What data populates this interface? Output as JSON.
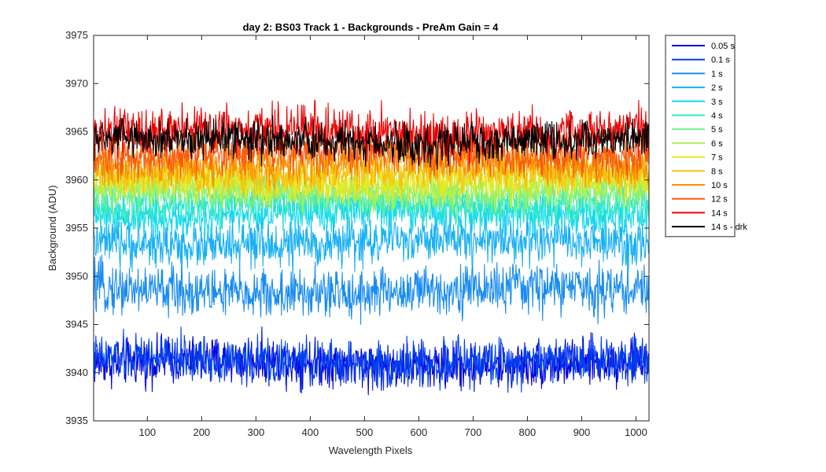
{
  "chart_data": {
    "type": "line",
    "title": "day 2: BS03  Track 1 - Backgrounds - PreAm Gain = 4",
    "xlabel": "Wavelength Pixels",
    "ylabel": "Background (ADU)",
    "xlim": [
      1,
      1024
    ],
    "ylim": [
      3935,
      3975
    ],
    "xticks": [
      100,
      200,
      300,
      400,
      500,
      600,
      700,
      800,
      900,
      1000
    ],
    "yticks": [
      3935,
      3940,
      3945,
      3950,
      3955,
      3960,
      3965,
      3970,
      3975
    ],
    "legend_position": "outside-top-right",
    "n_points": 1024,
    "series": [
      {
        "name": "0.05 s",
        "color": "#0000dd",
        "mean": 3941.0,
        "noise": 1.2
      },
      {
        "name": "0.1 s",
        "color": "#0040f0",
        "mean": 3941.2,
        "noise": 1.2
      },
      {
        "name": "1 s",
        "color": "#1a8cf0",
        "mean": 3948.5,
        "noise": 1.3
      },
      {
        "name": "2 s",
        "color": "#1ab0f5",
        "mean": 3953.5,
        "noise": 1.2
      },
      {
        "name": "3 s",
        "color": "#16d8f0",
        "mean": 3956.5,
        "noise": 1.0
      },
      {
        "name": "4 s",
        "color": "#30e8c8",
        "mean": 3957.5,
        "noise": 1.0
      },
      {
        "name": "5 s",
        "color": "#70f090",
        "mean": 3958.5,
        "noise": 1.0
      },
      {
        "name": "6 s",
        "color": "#b0f050",
        "mean": 3959.2,
        "noise": 1.0
      },
      {
        "name": "7 s",
        "color": "#e8e820",
        "mean": 3960.0,
        "noise": 1.0
      },
      {
        "name": "8 s",
        "color": "#f8c010",
        "mean": 3960.8,
        "noise": 1.0
      },
      {
        "name": "10 s",
        "color": "#f89000",
        "mean": 3961.8,
        "noise": 1.0
      },
      {
        "name": "12 s",
        "color": "#f85a10",
        "mean": 3962.8,
        "noise": 1.1
      },
      {
        "name": "14 s",
        "color": "#ee0000",
        "mean": 3965.0,
        "noise": 1.2
      },
      {
        "name": "14 s - drk",
        "color": "#000000",
        "mean": 3964.0,
        "noise": 1.0
      }
    ]
  }
}
